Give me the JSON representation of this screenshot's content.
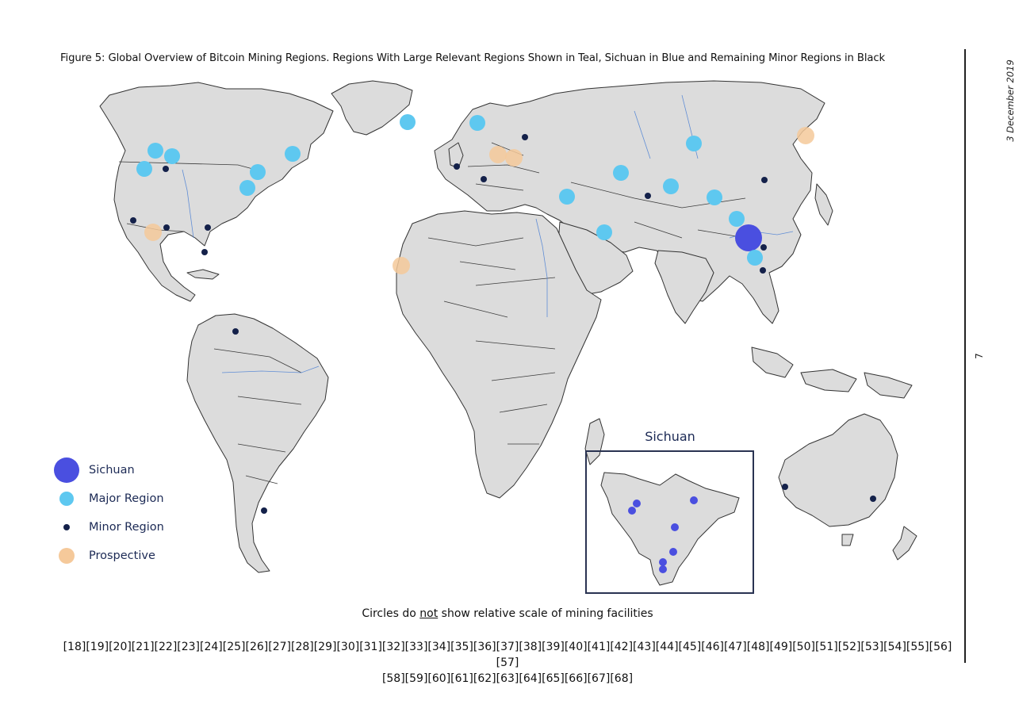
{
  "figure": {
    "title": "Figure 5: Global Overview of Bitcoin Mining Regions. Regions With Large Relevant Regions Shown in Teal, Sichuan in Blue and Remaining Minor Regions in Black",
    "date": "3 December 2019",
    "page_number": "7"
  },
  "colors": {
    "sichuan": "#4a4fe0",
    "major": "#5ec8f0",
    "minor": "#14214a",
    "prospective": "#f5c99a",
    "land": "#dcdcdc",
    "border": "#333333",
    "river": "#4a7fd4"
  },
  "legend": [
    {
      "key": "sichuan",
      "label": "Sichuan"
    },
    {
      "key": "major",
      "label": "Major Region"
    },
    {
      "key": "minor",
      "label": "Minor Region"
    },
    {
      "key": "prospective",
      "label": "Prospective"
    }
  ],
  "inset": {
    "title": "Sichuan",
    "markers": 8
  },
  "note": {
    "before": "Circles do ",
    "underlined": "not",
    "after": " show relative scale of mining facilities"
  },
  "references": {
    "line1": "[18][19][20][21][22][23][24][25][26][27][28][29][30][31][32][33][34][35][36][37][38][39][40][41][42][43][44][45][46][47][48][49][50][51][52][53][54][55][56][57]",
    "line2": "[58][59][60][61][62][63][64][65][66][67][68]"
  },
  "map_markers": {
    "sichuan": 1,
    "major": 20,
    "minor": 18,
    "prospective": 5
  }
}
